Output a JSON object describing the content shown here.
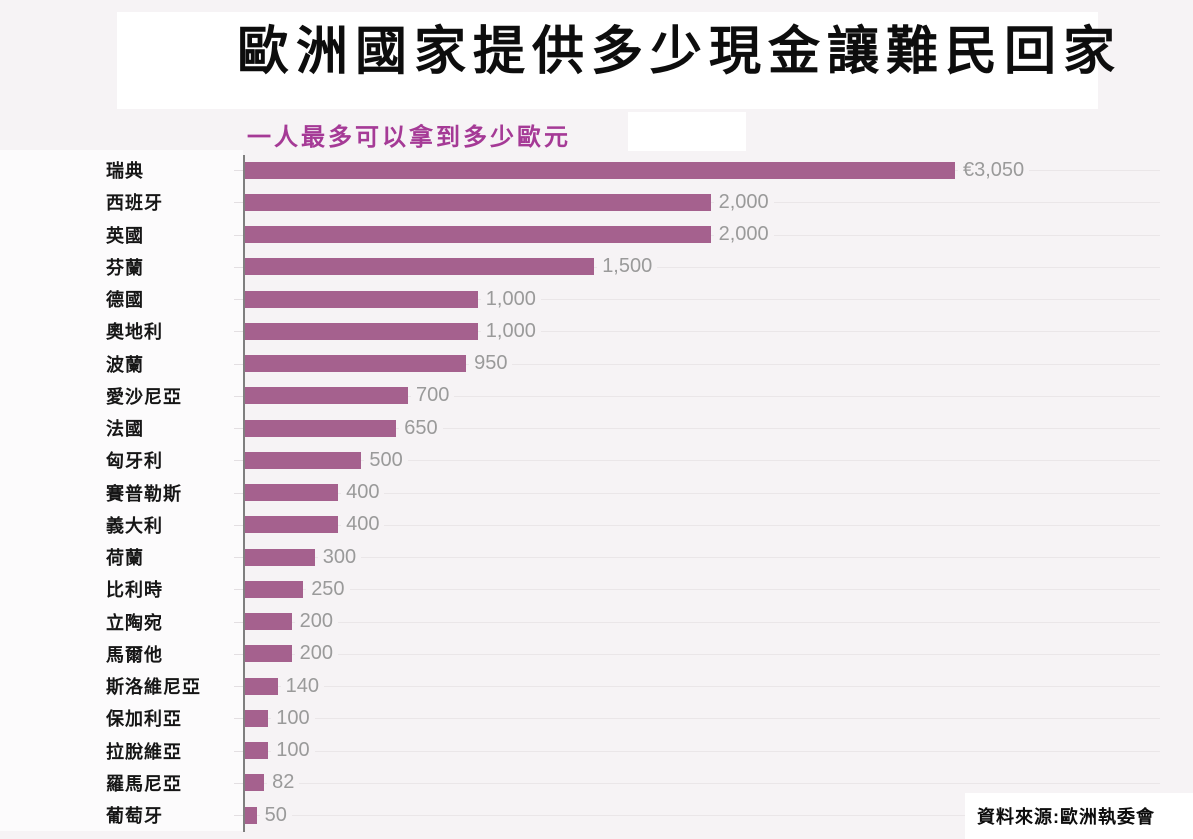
{
  "header": {
    "title": "歐洲國家提供多少現金讓難民回家",
    "subtitle": "一人最多可以拿到多少歐元"
  },
  "footer": {
    "source": "資料來源:歐洲執委會"
  },
  "colors": {
    "bar": "#a5618e",
    "subtitle": "#a53a96",
    "value_label": "#9a9a9a",
    "background": "#f6f3f5",
    "axis": "#7f7f7f",
    "gridline": "#eae6e8"
  },
  "chart_data": {
    "type": "bar",
    "orientation": "horizontal",
    "title": "歐洲國家提供多少現金讓難民回家",
    "subtitle": "一人最多可以拿到多少歐元",
    "unit": "EUR",
    "xlabel": "",
    "ylabel": "",
    "xlim": [
      0,
      3050
    ],
    "grid": true,
    "legend": false,
    "categories": [
      "瑞典",
      "西班牙",
      "英國",
      "芬蘭",
      "德國",
      "奧地利",
      "波蘭",
      "愛沙尼亞",
      "法國",
      "匈牙利",
      "賽普勒斯",
      "義大利",
      "荷蘭",
      "比利時",
      "立陶宛",
      "馬爾他",
      "斯洛維尼亞",
      "保加利亞",
      "拉脫維亞",
      "羅馬尼亞",
      "葡萄牙"
    ],
    "values": [
      3050,
      2000,
      2000,
      1500,
      1000,
      1000,
      950,
      700,
      650,
      500,
      400,
      400,
      300,
      250,
      200,
      200,
      140,
      100,
      100,
      82,
      50
    ],
    "value_labels": [
      "€3,050",
      "2,000",
      "2,000",
      "1,500",
      "1,000",
      "1,000",
      "950",
      "700",
      "650",
      "500",
      "400",
      "400",
      "300",
      "250",
      "200",
      "200",
      "140",
      "100",
      "100",
      "82",
      "50"
    ],
    "source": "資料來源:歐洲執委會"
  }
}
